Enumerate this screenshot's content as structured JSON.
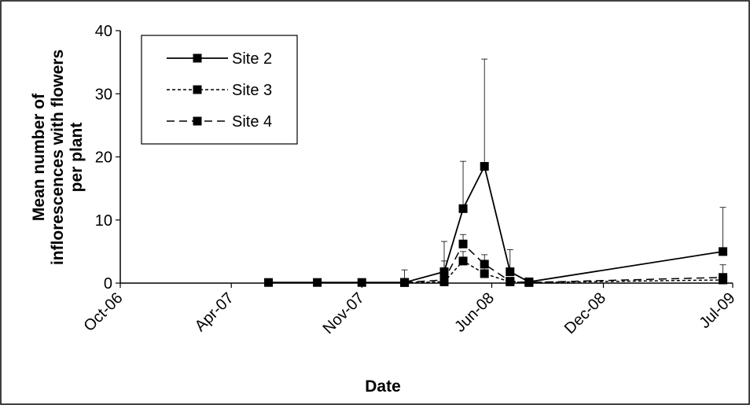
{
  "chart_data": {
    "type": "line",
    "title": "",
    "xlabel": "Date",
    "ylabel": "Mean number of inflorescences with flowers per plant",
    "ylabel_lines": [
      "Mean number of",
      "inflorescences with  flowers",
      "per plant"
    ],
    "x_ticks": [
      "Oct-06",
      "Apr-07",
      "Nov-07",
      "Jun-08",
      "Dec-08",
      "Jul-09"
    ],
    "x_tick_dates": [
      "2006-10-01",
      "2007-04-01",
      "2007-11-01",
      "2008-06-01",
      "2008-12-01",
      "2009-07-01"
    ],
    "xlim": [
      "2006-10-01",
      "2009-07-01"
    ],
    "ylim": [
      0,
      40
    ],
    "y_ticks": [
      0,
      10,
      20,
      30,
      40
    ],
    "grid": false,
    "legend_position": "top-left",
    "series": [
      {
        "name": "Site 2",
        "style": "solid",
        "x": [
          "2007-06-01",
          "2007-08-20",
          "2007-11-01",
          "2008-01-10",
          "2008-03-15",
          "2008-04-15",
          "2008-05-20",
          "2008-07-01",
          "2008-08-01",
          "2009-06-15"
        ],
        "y": [
          0.1,
          0.1,
          0.1,
          0.1,
          1.8,
          11.8,
          18.5,
          1.8,
          0.2,
          5.0
        ],
        "err": [
          0,
          0,
          0,
          2.0,
          4.8,
          7.5,
          17.0,
          3.5,
          0,
          7.0
        ]
      },
      {
        "name": "Site 3",
        "style": "dotted",
        "x": [
          "2008-01-10",
          "2008-03-15",
          "2008-04-15",
          "2008-05-20",
          "2008-07-01",
          "2008-08-01",
          "2009-06-15"
        ],
        "y": [
          0.1,
          0.2,
          3.5,
          1.5,
          0.2,
          0.1,
          0.5
        ],
        "err": [
          0,
          1.5,
          1.5,
          1.0,
          0,
          0,
          0
        ]
      },
      {
        "name": "Site 4",
        "style": "dashed",
        "x": [
          "2008-01-10",
          "2008-03-15",
          "2008-04-15",
          "2008-05-20",
          "2008-07-01",
          "2008-08-01",
          "2009-06-15"
        ],
        "y": [
          0.1,
          0.5,
          6.2,
          3.0,
          0.3,
          0.1,
          0.9
        ],
        "err": [
          0,
          3.0,
          1.5,
          1.5,
          0,
          0,
          2.0
        ]
      }
    ]
  }
}
